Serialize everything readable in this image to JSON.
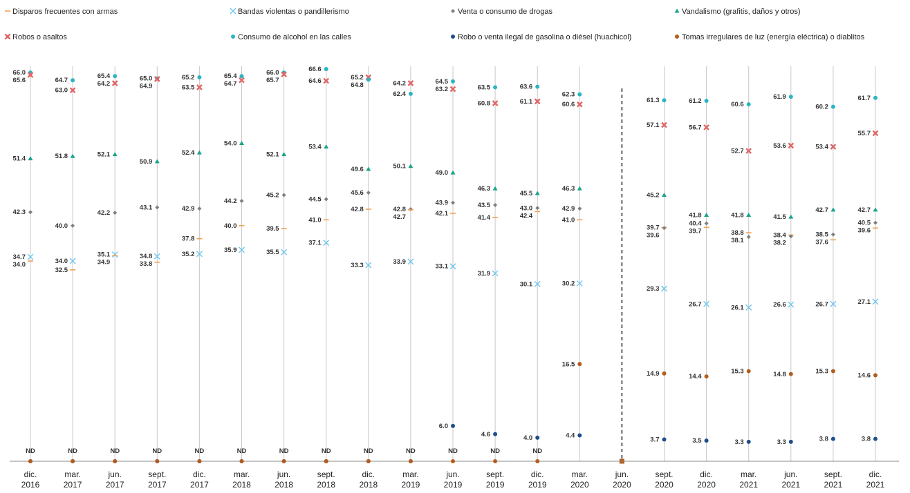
{
  "chart_data": {
    "type": "scatter",
    "categories": [
      [
        "dic.",
        "2016"
      ],
      [
        "mar.",
        "2017"
      ],
      [
        "jun.",
        "2017"
      ],
      [
        "sept.",
        "2017"
      ],
      [
        "dic.",
        "2017"
      ],
      [
        "mar.",
        "2018"
      ],
      [
        "jun.",
        "2018"
      ],
      [
        "sept.",
        "2018"
      ],
      [
        "dic.",
        "2018"
      ],
      [
        "mar.",
        "2019"
      ],
      [
        "jun.",
        "2019"
      ],
      [
        "sept.",
        "2019"
      ],
      [
        "dic.",
        "2019"
      ],
      [
        "mar.",
        "2020"
      ],
      [
        "jun.",
        "2020"
      ],
      [
        "sept.",
        "2020"
      ],
      [
        "dic.",
        "2020"
      ],
      [
        "mar.",
        "2021"
      ],
      [
        "jun.",
        "2021"
      ],
      [
        "sept.",
        "2021"
      ],
      [
        "dic.",
        "2021"
      ]
    ],
    "nd_label": "ND",
    "series": [
      {
        "name": "Disparos frecuentes con armas",
        "marker": "dash",
        "color": "#f0a050",
        "values": [
          34.0,
          32.5,
          34.9,
          33.8,
          37.8,
          40.0,
          39.5,
          41.0,
          42.8,
          42.7,
          42.1,
          41.4,
          42.4,
          41.0,
          null,
          39.7,
          39.7,
          38.8,
          38.4,
          37.6,
          39.6
        ]
      },
      {
        "name": "Bandas violentas o pandillerismo",
        "marker": "x",
        "color": "#6ec6ee",
        "values": [
          34.7,
          34.0,
          35.1,
          34.8,
          35.2,
          35.9,
          35.5,
          37.1,
          33.3,
          33.9,
          33.1,
          31.9,
          30.1,
          30.2,
          null,
          29.3,
          26.7,
          26.1,
          26.6,
          26.7,
          27.1
        ]
      },
      {
        "name": "Venta o consumo de drogas",
        "marker": "diamond",
        "color": "#7f7f7f",
        "values": [
          42.3,
          40.0,
          42.2,
          43.1,
          42.9,
          44.2,
          45.2,
          44.5,
          45.6,
          42.8,
          43.9,
          43.5,
          43.0,
          42.9,
          null,
          39.6,
          40.4,
          38.1,
          38.2,
          38.5,
          40.5
        ]
      },
      {
        "name": "Vandalismo (grafitis, daños y otros)",
        "marker": "triangle",
        "color": "#17a589",
        "values": [
          51.4,
          51.8,
          52.1,
          50.9,
          52.4,
          54.0,
          52.1,
          53.4,
          49.6,
          50.1,
          49.0,
          46.3,
          45.5,
          46.3,
          null,
          45.2,
          41.8,
          41.8,
          41.5,
          42.7,
          42.7
        ]
      },
      {
        "name": "Robos o asaltos",
        "marker": "xbox",
        "color": "#e06666",
        "values": [
          65.6,
          63.0,
          64.2,
          64.9,
          63.5,
          64.7,
          65.7,
          64.6,
          65.2,
          64.2,
          63.2,
          60.8,
          61.1,
          60.6,
          null,
          57.1,
          56.7,
          52.7,
          53.6,
          53.4,
          55.7
        ]
      },
      {
        "name": "Consumo de alcohol en las calles",
        "marker": "circle",
        "color": "#2ab5c4",
        "values": [
          66.0,
          64.7,
          65.4,
          65.0,
          65.2,
          65.4,
          66.0,
          66.6,
          64.8,
          62.4,
          64.5,
          63.5,
          63.6,
          62.3,
          null,
          61.3,
          61.2,
          60.6,
          61.9,
          60.2,
          61.7
        ]
      },
      {
        "name": "Robo o venta ilegal de gasolina o diésel (huachicol)",
        "marker": "circle",
        "color": "#1f4e8c",
        "values": [
          "ND",
          "ND",
          "ND",
          "ND",
          "ND",
          "ND",
          "ND",
          "ND",
          "ND",
          "ND",
          6.0,
          4.6,
          4.0,
          4.4,
          null,
          3.7,
          3.5,
          3.3,
          3.3,
          3.8,
          3.8
        ]
      },
      {
        "name": "Tomas irregulares de luz (energía eléctrica) o diablitos",
        "marker": "circle",
        "color": "#b35c1e",
        "values": [
          "ND",
          "ND",
          "ND",
          "ND",
          "ND",
          "ND",
          "ND",
          "ND",
          "ND",
          "ND",
          "ND",
          "ND",
          "ND",
          16.5,
          null,
          14.9,
          14.4,
          15.3,
          14.8,
          15.3,
          14.6
        ]
      }
    ],
    "ylim": [
      0,
      70
    ],
    "title": "",
    "xlabel": "",
    "ylabel": "",
    "grid": false,
    "legend_position": "top"
  }
}
